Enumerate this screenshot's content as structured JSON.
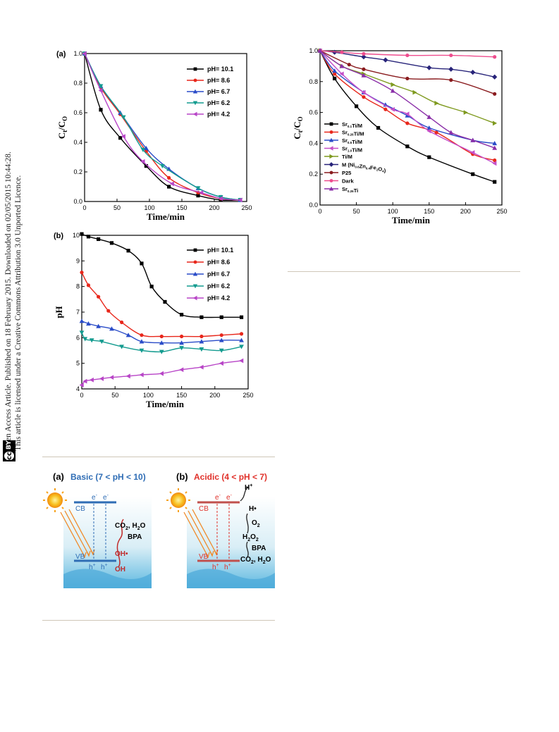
{
  "sidebar": {
    "line1": "Open Access Article. Published on 18 February 2015. Downloaded on 02/05/2015 10:44:28.",
    "line2": "This article is licensed under a Creative Commons Attribution 3.0 Unported Licence.",
    "cc_label": "cc",
    "by_label": "BY"
  },
  "chart_data": [
    {
      "id": "a",
      "panel_label": "(a)",
      "type": "line",
      "xlabel": "Time/min",
      "ylabel_main": "C",
      "ylabel_sub1": "t",
      "ylabel_sep": "/C",
      "ylabel_sub2": "O",
      "xlim": [
        0,
        250
      ],
      "ylim": [
        0,
        1.0
      ],
      "xticks": [
        "0",
        "50",
        "100",
        "150",
        "200",
        "250"
      ],
      "yticks": [
        "0.0",
        "0.2",
        "0.4",
        "0.6",
        "0.8",
        "1.0"
      ],
      "legend_position": "top-right",
      "series": [
        {
          "name": "pH= 10.1",
          "color": "#000000",
          "marker": "square",
          "x": [
            0,
            25,
            55,
            95,
            130,
            175,
            210,
            240
          ],
          "y": [
            1.0,
            0.62,
            0.43,
            0.24,
            0.1,
            0.04,
            0.01,
            0.01
          ]
        },
        {
          "name": "pH= 8.6",
          "color": "#e8271b",
          "marker": "circle",
          "x": [
            0,
            25,
            55,
            95,
            130,
            175,
            210,
            240
          ],
          "y": [
            1.0,
            0.77,
            0.59,
            0.34,
            0.16,
            0.06,
            0.02,
            0.01
          ]
        },
        {
          "name": "pH= 6.7",
          "color": "#2a4cc8",
          "marker": "triangle-up",
          "x": [
            0,
            25,
            55,
            95,
            130,
            175,
            210,
            240
          ],
          "y": [
            1.0,
            0.78,
            0.6,
            0.36,
            0.22,
            0.09,
            0.03,
            0.01
          ]
        },
        {
          "name": "pH= 6.2",
          "color": "#139b8f",
          "marker": "triangle-down",
          "x": [
            0,
            25,
            60,
            90,
            120,
            175,
            210,
            240
          ],
          "y": [
            1.0,
            0.78,
            0.57,
            0.35,
            0.24,
            0.09,
            0.03,
            0.01
          ]
        },
        {
          "name": "pH= 4.2",
          "color": "#b845c7",
          "marker": "triangle-left",
          "x": [
            0,
            25,
            60,
            90,
            135,
            180,
            210,
            240
          ],
          "y": [
            1.0,
            0.75,
            0.44,
            0.27,
            0.12,
            0.06,
            0.02,
            0.01
          ]
        }
      ]
    },
    {
      "id": "b",
      "panel_label": "(b)",
      "type": "line",
      "xlabel": "Time/min",
      "ylabel": "pH",
      "xlim": [
        0,
        250
      ],
      "ylim": [
        4,
        10
      ],
      "xticks": [
        "0",
        "50",
        "100",
        "150",
        "200",
        "250"
      ],
      "yticks": [
        "4",
        "5",
        "6",
        "7",
        "8",
        "9",
        "10"
      ],
      "legend_position": "top-right",
      "series": [
        {
          "name": "pH= 10.1",
          "color": "#000000",
          "marker": "square",
          "x": [
            0,
            10,
            25,
            45,
            70,
            90,
            105,
            125,
            150,
            180,
            210,
            240
          ],
          "y": [
            10.05,
            9.95,
            9.85,
            9.7,
            9.4,
            8.9,
            8.0,
            7.4,
            6.9,
            6.8,
            6.8,
            6.8
          ]
        },
        {
          "name": "pH= 8.6",
          "color": "#e8271b",
          "marker": "circle",
          "x": [
            0,
            10,
            25,
            40,
            60,
            90,
            120,
            150,
            180,
            210,
            240
          ],
          "y": [
            8.55,
            8.05,
            7.6,
            7.05,
            6.6,
            6.1,
            6.05,
            6.05,
            6.05,
            6.1,
            6.15
          ]
        },
        {
          "name": "pH= 6.7",
          "color": "#2a4cc8",
          "marker": "triangle-up",
          "x": [
            0,
            10,
            25,
            45,
            70,
            90,
            120,
            150,
            180,
            210,
            240
          ],
          "y": [
            6.65,
            6.55,
            6.45,
            6.35,
            6.1,
            5.85,
            5.8,
            5.8,
            5.85,
            5.9,
            5.9
          ]
        },
        {
          "name": "pH= 6.2",
          "color": "#139b8f",
          "marker": "triangle-down",
          "x": [
            0,
            5,
            15,
            30,
            60,
            90,
            120,
            150,
            180,
            210,
            240
          ],
          "y": [
            6.2,
            5.95,
            5.9,
            5.85,
            5.65,
            5.5,
            5.45,
            5.6,
            5.55,
            5.5,
            5.65
          ]
        },
        {
          "name": "pH= 4.2",
          "color": "#b845c7",
          "marker": "triangle-left",
          "x": [
            0,
            5,
            15,
            30,
            45,
            70,
            90,
            120,
            150,
            180,
            210,
            240
          ],
          "y": [
            4.15,
            4.3,
            4.35,
            4.4,
            4.45,
            4.5,
            4.55,
            4.6,
            4.75,
            4.85,
            5.0,
            5.1
          ]
        }
      ]
    },
    {
      "id": "c",
      "type": "line",
      "xlabel": "Time/min",
      "ylabel_main": "C",
      "ylabel_sub1": "t",
      "ylabel_sep": "/C",
      "ylabel_sub2": "O",
      "xlim": [
        0,
        250
      ],
      "ylim": [
        0,
        1.0
      ],
      "xticks": [
        "0",
        "50",
        "100",
        "150",
        "200",
        "250"
      ],
      "yticks": [
        "0.0",
        "0.2",
        "0.4",
        "0.6",
        "0.8",
        "1.0"
      ],
      "legend_position": "bottom-left",
      "series": [
        {
          "name": "Sr",
          "sub": "0.1",
          "suffix": "Ti/M",
          "color": "#000000",
          "marker": "square",
          "x": [
            0,
            20,
            50,
            80,
            120,
            150,
            210,
            240
          ],
          "y": [
            1.0,
            0.82,
            0.64,
            0.5,
            0.38,
            0.31,
            0.2,
            0.15
          ]
        },
        {
          "name": "Sr",
          "sub": "0.26",
          "suffix": "Ti/M",
          "color": "#e8271b",
          "marker": "circle",
          "x": [
            0,
            20,
            60,
            90,
            120,
            160,
            210,
            240
          ],
          "y": [
            1.0,
            0.85,
            0.7,
            0.62,
            0.53,
            0.47,
            0.33,
            0.29
          ]
        },
        {
          "name": "Sr",
          "sub": "0.5",
          "suffix": "Ti/M",
          "color": "#2a4cc8",
          "marker": "triangle-up",
          "x": [
            0,
            20,
            60,
            90,
            120,
            150,
            210,
            240
          ],
          "y": [
            1.0,
            0.87,
            0.73,
            0.65,
            0.58,
            0.5,
            0.42,
            0.4
          ]
        },
        {
          "name": "Sr",
          "sub": "1.0",
          "suffix": "Ti/M",
          "color": "#c54fc8",
          "marker": "triangle-left",
          "x": [
            0,
            30,
            60,
            100,
            120,
            150,
            210,
            240
          ],
          "y": [
            1.0,
            0.85,
            0.73,
            0.62,
            0.59,
            0.48,
            0.34,
            0.27
          ]
        },
        {
          "name": "Ti/M",
          "color": "#7f9a1f",
          "marker": "triangle-right",
          "x": [
            0,
            30,
            60,
            100,
            130,
            160,
            200,
            240
          ],
          "y": [
            1.0,
            0.9,
            0.85,
            0.78,
            0.73,
            0.66,
            0.6,
            0.53
          ]
        },
        {
          "name": "M (Ni",
          "sub": "0.6",
          "mid": "Zn",
          "sub2": "0.4",
          "mid2": "Fe",
          "sub3": "2",
          "mid3": "O",
          "sub4": "4",
          "suffix": ")",
          "color": "#28247a",
          "marker": "diamond",
          "x": [
            0,
            20,
            60,
            90,
            150,
            180,
            210,
            240
          ],
          "y": [
            1.0,
            0.99,
            0.96,
            0.94,
            0.89,
            0.88,
            0.86,
            0.83
          ]
        },
        {
          "name": "P25",
          "color": "#8a1c1f",
          "marker": "circle",
          "x": [
            0,
            40,
            60,
            120,
            180,
            240
          ],
          "y": [
            1.0,
            0.91,
            0.88,
            0.82,
            0.81,
            0.72
          ]
        },
        {
          "name": "Dark",
          "color": "#ee4d8e",
          "marker": "circle",
          "x": [
            0,
            30,
            60,
            120,
            180,
            240
          ],
          "y": [
            1.0,
            0.99,
            0.98,
            0.97,
            0.97,
            0.96
          ]
        },
        {
          "name": "Sr",
          "sub": "0.26",
          "suffix": "Ti",
          "color": "#8a2ea8",
          "marker": "triangle-up",
          "x": [
            0,
            30,
            60,
            100,
            150,
            180,
            210,
            240
          ],
          "y": [
            1.0,
            0.9,
            0.84,
            0.74,
            0.57,
            0.47,
            0.42,
            0.37
          ]
        }
      ]
    }
  ],
  "scheme": {
    "a": {
      "label": "(a)",
      "title": "Basic (7 < pH < 10)",
      "cb": "CB",
      "vb": "VB",
      "e1": "e",
      "e2": "e",
      "minus": "-",
      "h1": "h",
      "h2": "h",
      "plus": "+",
      "product": "CO",
      "product_sub": "2",
      "product_tail": ", H",
      "product_sub2": "2",
      "product_end": "O",
      "bpa": "BPA",
      "radical": "OH•",
      "hydroxide": "OH",
      "color": "#2f6db5"
    },
    "b": {
      "label": "(b)",
      "title": "Acidic (4 < pH < 7)",
      "cb": "CB",
      "vb": "VB",
      "e1": "e",
      "e2": "e",
      "minus": "-",
      "h1": "h",
      "h2": "h",
      "plus": "+",
      "proton": "H",
      "hrad": "H•",
      "o2": "O",
      "o2_sub": "2",
      "h2o2_a": "H",
      "h2o2_sub1": "2",
      "h2o2_b": "O",
      "h2o2_sub2": "2",
      "bpa": "BPA",
      "product": "CO",
      "product_sub": "2",
      "product_tail": ", H",
      "product_sub2": "2",
      "product_end": "O",
      "color": "#e0312a"
    }
  }
}
